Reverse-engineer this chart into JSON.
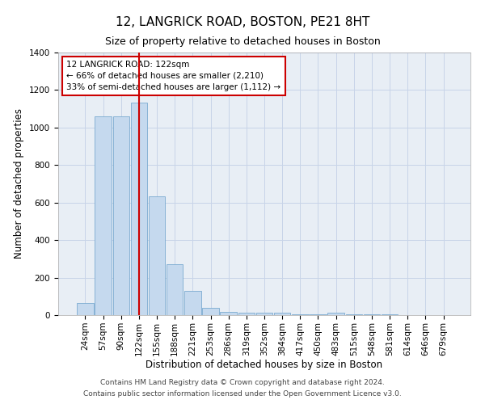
{
  "title": "12, LANGRICK ROAD, BOSTON, PE21 8HT",
  "subtitle": "Size of property relative to detached houses in Boston",
  "xlabel": "Distribution of detached houses by size in Boston",
  "ylabel": "Number of detached properties",
  "categories": [
    "24sqm",
    "57sqm",
    "90sqm",
    "122sqm",
    "155sqm",
    "188sqm",
    "221sqm",
    "253sqm",
    "286sqm",
    "319sqm",
    "352sqm",
    "384sqm",
    "417sqm",
    "450sqm",
    "483sqm",
    "515sqm",
    "548sqm",
    "581sqm",
    "614sqm",
    "646sqm",
    "679sqm"
  ],
  "values": [
    65,
    1060,
    1060,
    1135,
    635,
    270,
    130,
    38,
    18,
    15,
    15,
    15,
    4,
    4,
    15,
    4,
    4,
    4,
    2,
    2,
    2
  ],
  "bar_color": "#c5d9ee",
  "bar_edge_color": "#7aaad0",
  "grid_color": "#c8d4e8",
  "background_color": "#e8eef5",
  "vline_x": 3,
  "vline_color": "#cc0000",
  "annotation_text": "12 LANGRICK ROAD: 122sqm\n← 66% of detached houses are smaller (2,210)\n33% of semi-detached houses are larger (1,112) →",
  "annotation_box_color": "#ffffff",
  "annotation_box_edge": "#cc0000",
  "ylim": [
    0,
    1400
  ],
  "yticks": [
    0,
    200,
    400,
    600,
    800,
    1000,
    1200,
    1400
  ],
  "footer_line1": "Contains HM Land Registry data © Crown copyright and database right 2024.",
  "footer_line2": "Contains public sector information licensed under the Open Government Licence v3.0.",
  "title_fontsize": 11,
  "subtitle_fontsize": 9,
  "axis_label_fontsize": 8.5,
  "tick_fontsize": 7.5,
  "annotation_fontsize": 7.5,
  "footer_fontsize": 6.5
}
